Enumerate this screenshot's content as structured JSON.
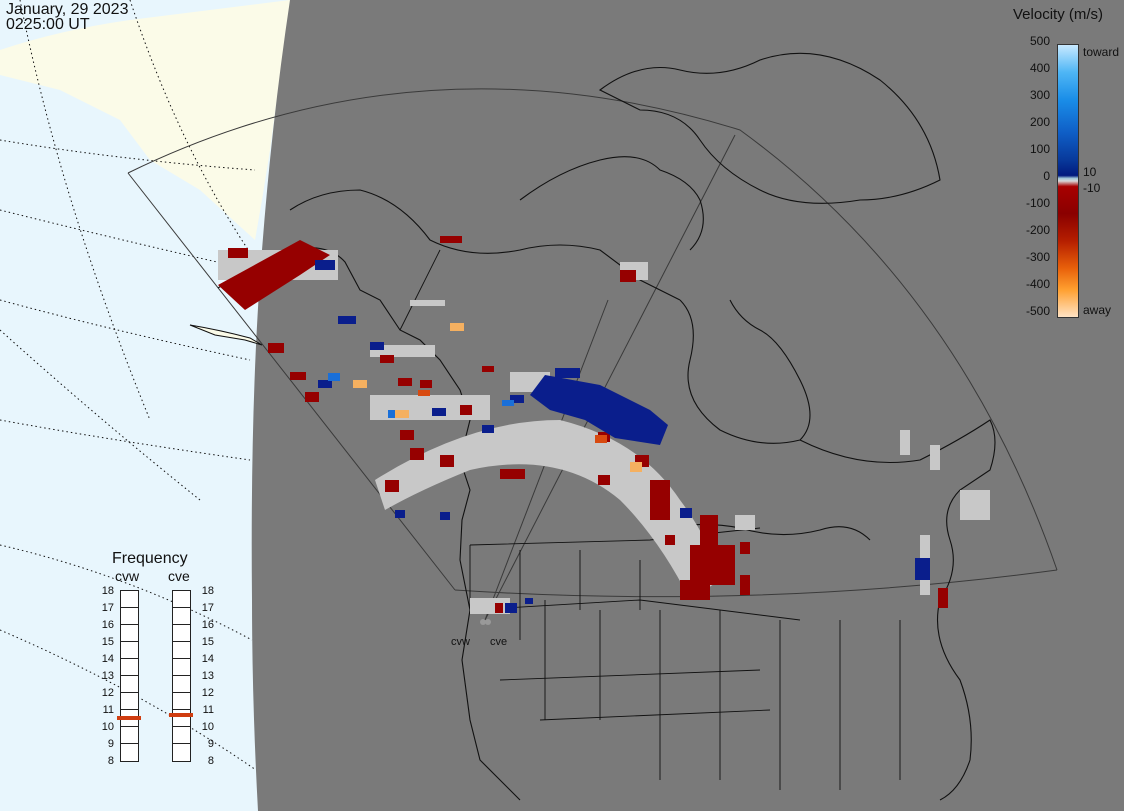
{
  "header": {
    "date": "January, 29 2023",
    "time": "0225:00 UT"
  },
  "velocity_scale": {
    "title": "Velocity (m/s)",
    "ticks": [
      "500",
      "400",
      "300",
      "200",
      "100",
      "0",
      "-100",
      "-200",
      "-300",
      "-400",
      "-500"
    ],
    "toward_label": "toward",
    "away_label": "away",
    "pos_threshold": "10",
    "neg_threshold": "-10"
  },
  "frequency": {
    "title": "Frequency",
    "radars": [
      {
        "name": "cvw",
        "value_mhz": 10.6
      },
      {
        "name": "cve",
        "value_mhz": 10.75
      }
    ],
    "scale": [
      "18",
      "17",
      "16",
      "15",
      "14",
      "13",
      "12",
      "11",
      "10",
      "9",
      "8"
    ]
  },
  "sites": {
    "west": "cvw",
    "east": "cve"
  },
  "colors": {
    "ocean": "#e8f6fd",
    "night_land": "#7a7a7a",
    "day_land": "#fbfbe8",
    "ground_scatter": "#c8c8c8",
    "toward_strong": "#0a1e8c",
    "away_strong": "#960000",
    "freq_marker": "#d03d10"
  }
}
